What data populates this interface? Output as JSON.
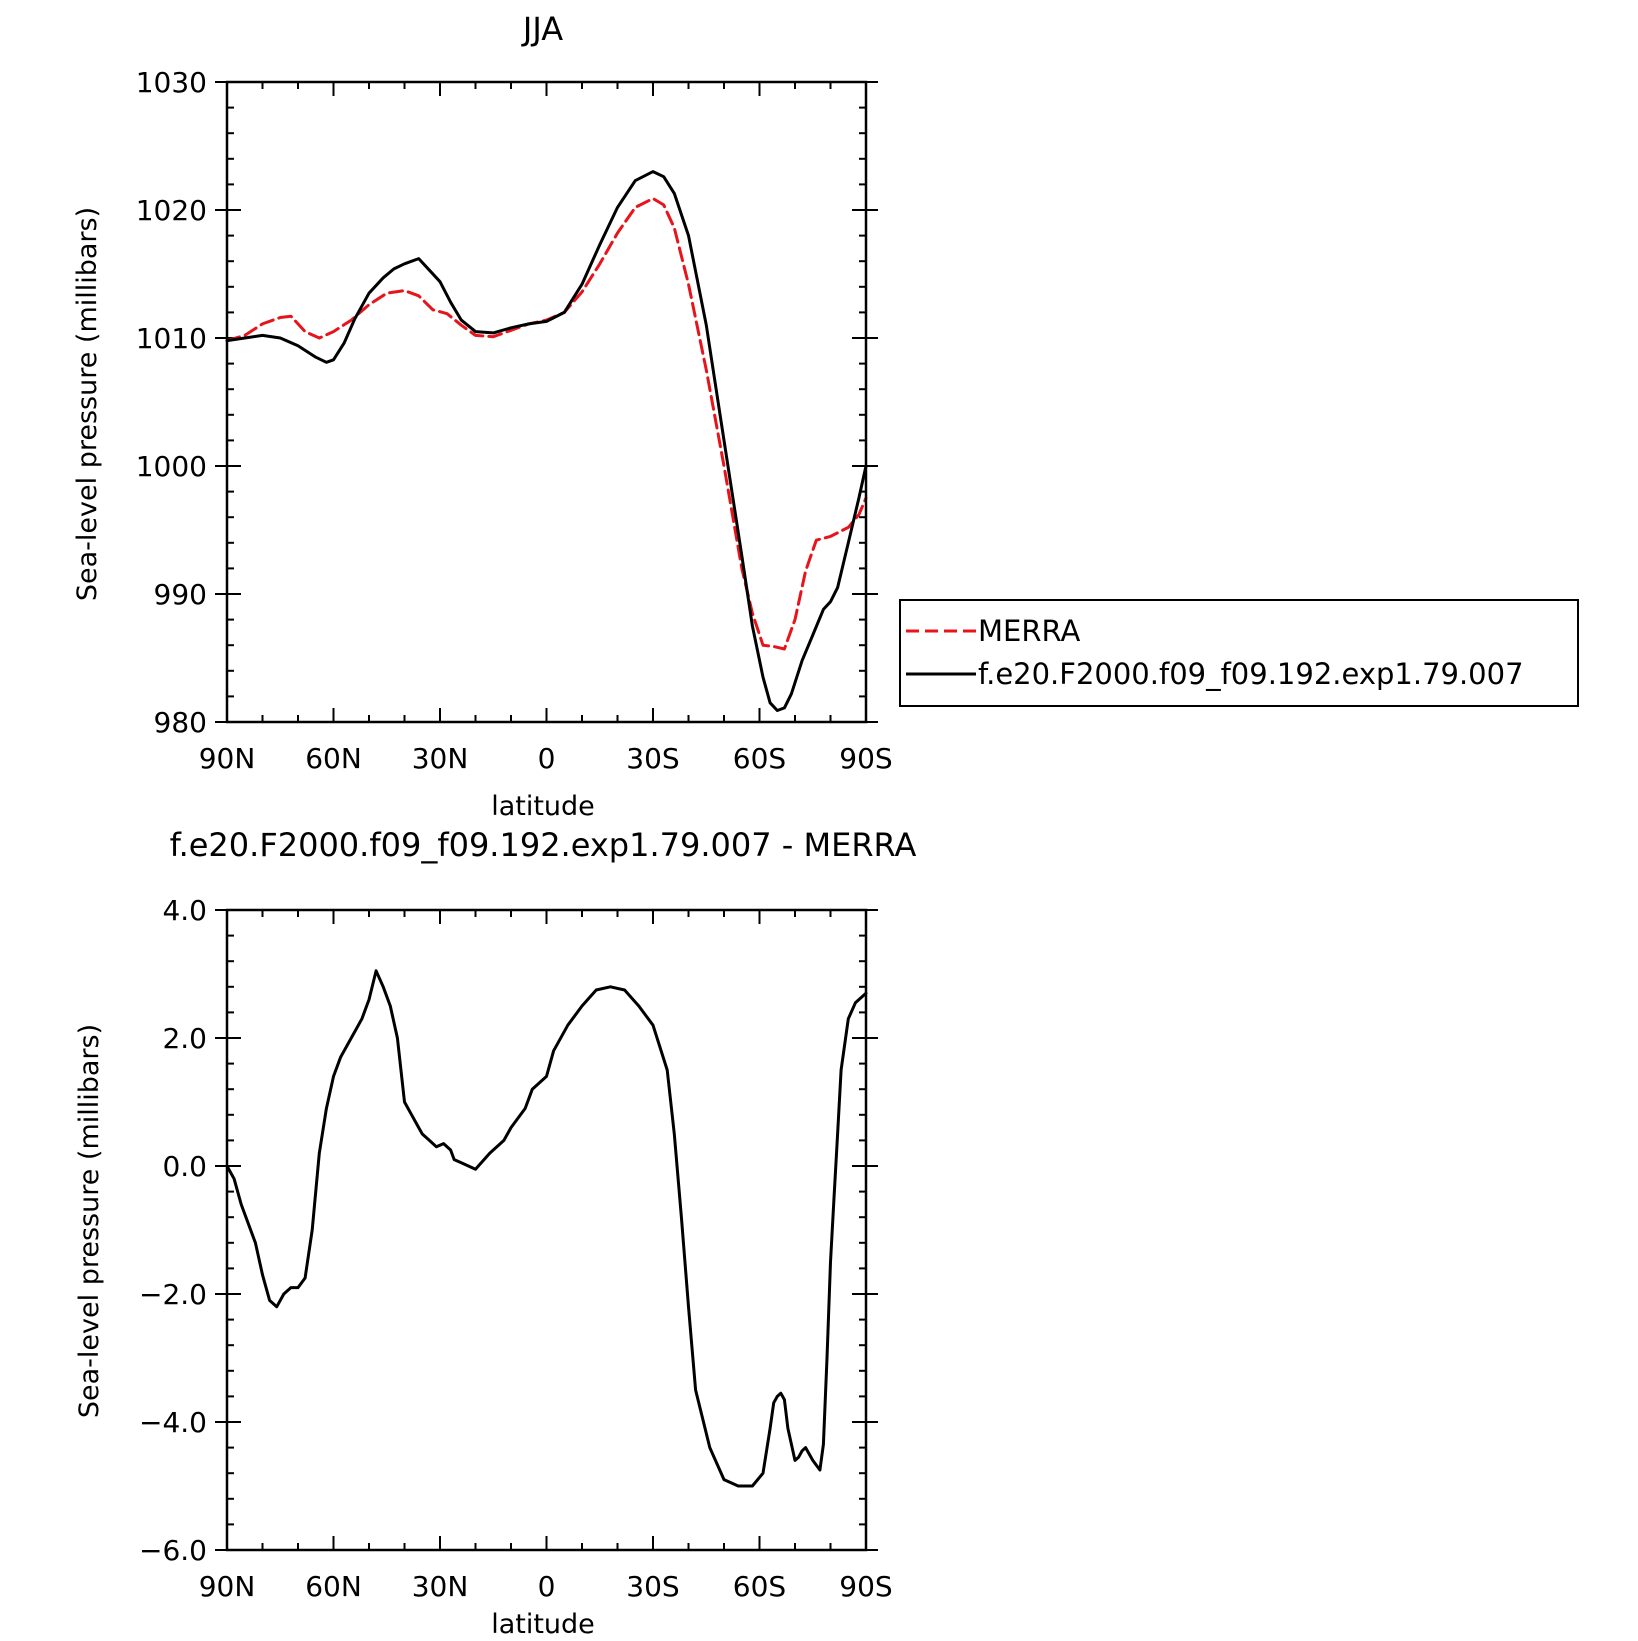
{
  "chart_data": [
    {
      "type": "line",
      "title": "JJA",
      "xlabel": "latitude",
      "ylabel": "Sea-level pressure (millibars)",
      "xlim": [
        90,
        -90
      ],
      "ylim": [
        980,
        1030
      ],
      "x_ticks": [
        90,
        60,
        30,
        0,
        -30,
        -60,
        -90
      ],
      "x_tick_labels": [
        "90N",
        "60N",
        "30N",
        "0",
        "30S",
        "60S",
        "90S"
      ],
      "y_ticks": [
        980,
        990,
        1000,
        1010,
        1020,
        1030
      ],
      "y_tick_labels": [
        "980",
        "990",
        "1000",
        "1010",
        "1020",
        "1030"
      ],
      "legend": "right",
      "grid": false,
      "series": [
        {
          "name": "MERRA",
          "color": "#e8141c",
          "dash": "dashed",
          "x": [
            90,
            85,
            80,
            75,
            72,
            68,
            64,
            60,
            55,
            50,
            45,
            40,
            36,
            32,
            28,
            24,
            20,
            15,
            10,
            5,
            0,
            -5,
            -10,
            -15,
            -20,
            -25,
            -30,
            -33,
            -36,
            -40,
            -45,
            -50,
            -55,
            -58,
            -61,
            -64,
            -67,
            -70,
            -73,
            -76,
            -80,
            -85,
            -88,
            -90
          ],
          "y": [
            1009.8,
            1010.2,
            1011.1,
            1011.6,
            1011.7,
            1010.5,
            1010.0,
            1010.5,
            1011.4,
            1012.6,
            1013.5,
            1013.7,
            1013.3,
            1012.2,
            1011.9,
            1011.0,
            1010.2,
            1010.1,
            1010.6,
            1011.1,
            1011.4,
            1012.0,
            1013.6,
            1015.8,
            1018.2,
            1020.2,
            1020.9,
            1020.4,
            1018.6,
            1014.2,
            1007.5,
            1000.0,
            992.0,
            988.5,
            986.0,
            985.9,
            985.7,
            988.0,
            991.8,
            994.2,
            994.5,
            995.2,
            996.2,
            997.5
          ]
        },
        {
          "name": "f.e20.F2000.f09_f09.192.exp1.79.007",
          "color": "#000000",
          "dash": "solid",
          "x": [
            90,
            85,
            80,
            75,
            70,
            65,
            62,
            60,
            57,
            54,
            50,
            46,
            43,
            40,
            36,
            33,
            30,
            27,
            24,
            20,
            15,
            10,
            5,
            0,
            -5,
            -10,
            -15,
            -20,
            -25,
            -30,
            -33,
            -36,
            -40,
            -45,
            -50,
            -55,
            -58,
            -61,
            -63,
            -65,
            -67,
            -69,
            -72,
            -75,
            -78,
            -80,
            -82,
            -85,
            -88,
            -90
          ],
          "y": [
            1009.8,
            1010.0,
            1010.2,
            1010.0,
            1009.4,
            1008.5,
            1008.1,
            1008.3,
            1009.6,
            1011.5,
            1013.5,
            1014.7,
            1015.4,
            1015.8,
            1016.2,
            1015.3,
            1014.4,
            1012.8,
            1011.4,
            1010.5,
            1010.4,
            1010.8,
            1011.1,
            1011.3,
            1012.0,
            1014.2,
            1017.3,
            1020.2,
            1022.3,
            1023.0,
            1022.6,
            1021.3,
            1018.0,
            1011.0,
            1002.0,
            993.0,
            987.5,
            983.5,
            981.5,
            980.9,
            981.1,
            982.2,
            984.8,
            986.8,
            988.8,
            989.4,
            990.5,
            994.0,
            997.5,
            1000.0
          ]
        }
      ]
    },
    {
      "type": "line",
      "title": "f.e20.F2000.f09_f09.192.exp1.79.007 - MERRA",
      "xlabel": "latitude",
      "ylabel": "Sea-level pressure (millibars)",
      "xlim": [
        90,
        -90
      ],
      "ylim": [
        -6.0,
        4.0
      ],
      "x_ticks": [
        90,
        60,
        30,
        0,
        -30,
        -60,
        -90
      ],
      "x_tick_labels": [
        "90N",
        "60N",
        "30N",
        "0",
        "30S",
        "60S",
        "90S"
      ],
      "y_ticks": [
        -6.0,
        -4.0,
        -2.0,
        0.0,
        2.0,
        4.0
      ],
      "y_tick_labels": [
        "−6.0",
        "−4.0",
        "−2.0",
        "0.0",
        "2.0",
        "4.0"
      ],
      "grid": false,
      "series": [
        {
          "color": "#000000",
          "dash": "solid",
          "x": [
            90,
            88,
            86,
            84,
            82,
            80,
            78,
            76,
            74,
            72,
            70,
            68,
            66,
            64,
            62,
            60,
            58,
            56,
            54,
            52,
            50,
            48,
            46,
            44,
            42,
            40,
            38,
            36,
            35,
            33,
            31,
            29,
            27,
            26,
            24,
            20,
            16,
            12,
            10,
            6,
            4,
            0,
            -2,
            -6,
            -10,
            -14,
            -18,
            -22,
            -26,
            -30,
            -34,
            -36,
            -38,
            -40,
            -42,
            -46,
            -50,
            -54,
            -58,
            -61,
            -63,
            -64,
            -65,
            -66,
            -67,
            -68,
            -70,
            -71,
            -72,
            -73,
            -75,
            -77,
            -78,
            -79,
            -80,
            -81,
            -82,
            -83,
            -85,
            -87,
            -89,
            -90
          ],
          "y": [
            0.0,
            -0.2,
            -0.6,
            -0.9,
            -1.2,
            -1.7,
            -2.1,
            -2.2,
            -2.0,
            -1.9,
            -1.9,
            -1.75,
            -1.0,
            0.2,
            0.9,
            1.4,
            1.7,
            1.9,
            2.1,
            2.3,
            2.6,
            3.05,
            2.8,
            2.5,
            2.0,
            1.0,
            0.8,
            0.6,
            0.5,
            0.4,
            0.3,
            0.35,
            0.25,
            0.1,
            0.05,
            -0.05,
            0.2,
            0.4,
            0.6,
            0.9,
            1.2,
            1.4,
            1.8,
            2.2,
            2.5,
            2.75,
            2.8,
            2.75,
            2.5,
            2.2,
            1.5,
            0.5,
            -0.8,
            -2.2,
            -3.5,
            -4.4,
            -4.9,
            -5.0,
            -5.0,
            -4.8,
            -4.1,
            -3.7,
            -3.6,
            -3.55,
            -3.65,
            -4.1,
            -4.6,
            -4.55,
            -4.45,
            -4.4,
            -4.6,
            -4.75,
            -4.35,
            -3.0,
            -1.5,
            -0.5,
            0.5,
            1.5,
            2.3,
            2.55,
            2.65,
            2.7
          ]
        }
      ]
    }
  ]
}
